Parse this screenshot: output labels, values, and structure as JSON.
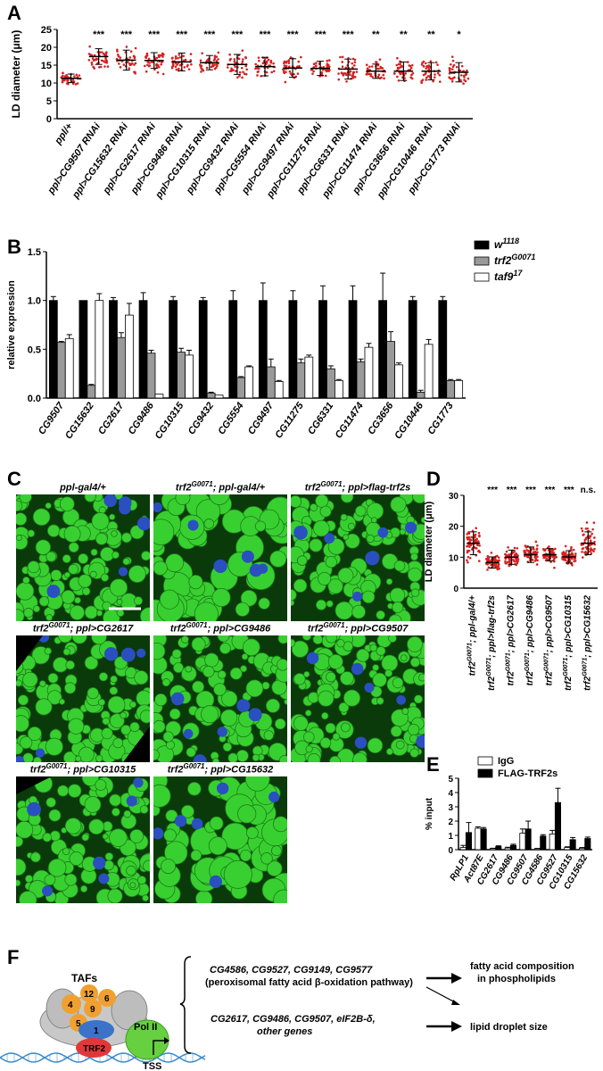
{
  "panels": {
    "A": "A",
    "B": "B",
    "C": "C",
    "D": "D",
    "E": "E",
    "F": "F"
  },
  "colors": {
    "red_points": "#d62020",
    "black": "#000000",
    "gray_bar": "#9a9a9a",
    "white_bar": "#ffffff",
    "droplet_green": "#38d030",
    "nucleus_blue": "#2a4fc0"
  },
  "chart_data": [
    {
      "id": "A",
      "type": "scatter",
      "ylabel": "LD diameter (μm)",
      "ylim": [
        0,
        25
      ],
      "yticks": [
        0,
        5,
        10,
        15,
        20,
        25
      ],
      "categories": [
        "ppl/+",
        "ppl>CG9507 RNAi",
        "ppl>CG15632 RNAi",
        "ppl>CG2617 RNAi",
        "ppl>CG9486 RNAi",
        "ppl>CG10315 RNAi",
        "ppl>CG9432 RNAi",
        "ppl>CG5554 RNAi",
        "ppl>CG9497 RNAi",
        "ppl>CG11275 RNAi",
        "ppl>CG6331 RNAi",
        "ppl>CG11474 RNAi",
        "ppl>CG3656 RNAi",
        "ppl>CG10446 RNAi",
        "ppl>CG1773 RNAi"
      ],
      "means": [
        11.3,
        17.4,
        16.4,
        16.3,
        15.9,
        15.7,
        15.2,
        14.6,
        14.2,
        14.1,
        13.9,
        13.3,
        13.3,
        13.3,
        13.0
      ],
      "sd": [
        1.2,
        2.2,
        2.8,
        2.2,
        2.5,
        2.0,
        2.8,
        2.6,
        2.6,
        2.0,
        2.8,
        2.0,
        2.6,
        2.4,
        2.7
      ],
      "significance": [
        "",
        "***",
        "***",
        "***",
        "***",
        "***",
        "***",
        "***",
        "***",
        "***",
        "***",
        "**",
        "**",
        "**",
        "*"
      ]
    },
    {
      "id": "B",
      "type": "bar",
      "ylabel": "relative expression",
      "ylim": [
        0,
        1.5
      ],
      "yticks": [
        "0.0",
        "0.5",
        "1.0",
        "1.5"
      ],
      "categories": [
        "CG9507",
        "CG15632",
        "CG2617",
        "CG9486",
        "CG10315",
        "CG9432",
        "CG5554",
        "CG9497",
        "CG11275",
        "CG6331",
        "CG11474",
        "CG3656",
        "CG10446",
        "CG1773"
      ],
      "series": [
        {
          "name": "w1118",
          "legend_base": "w",
          "legend_sup": "1118",
          "color": "#000000",
          "values": [
            1,
            1,
            1,
            1,
            1,
            1,
            1,
            1,
            1,
            1,
            1,
            1,
            1,
            1
          ],
          "err": [
            0.04,
            0,
            0.03,
            0.08,
            0.04,
            0.03,
            0.1,
            0.18,
            0.1,
            0.15,
            0.15,
            0.28,
            0.04,
            0.04
          ]
        },
        {
          "name": "trf2G0071",
          "legend_base": "trf2",
          "legend_sup": "G0071",
          "color": "#9a9a9a",
          "values": [
            0.57,
            0.13,
            0.62,
            0.46,
            0.47,
            0.05,
            0.21,
            0.32,
            0.36,
            0.3,
            0.37,
            0.58,
            0.06,
            0.18
          ],
          "err": [
            0.01,
            0.01,
            0.05,
            0.03,
            0.04,
            0.01,
            0.01,
            0.08,
            0.04,
            0.03,
            0.03,
            0.1,
            0.02,
            0.01
          ]
        },
        {
          "name": "taf917",
          "legend_base": "taf9",
          "legend_sup": "17",
          "color": "#ffffff",
          "values": [
            0.61,
            1.0,
            0.85,
            0.04,
            0.44,
            0.03,
            0.32,
            0.17,
            0.42,
            0.18,
            0.52,
            0.34,
            0.55,
            0.18
          ],
          "err": [
            0.04,
            0.07,
            0.12,
            0,
            0.05,
            0,
            0.01,
            0.01,
            0.02,
            0.01,
            0.04,
            0.02,
            0.05,
            0.01
          ]
        }
      ]
    },
    {
      "id": "D",
      "type": "scatter",
      "ylabel": "LD diameter (μm)",
      "ylim": [
        0,
        30
      ],
      "yticks": [
        0,
        10,
        20,
        30
      ],
      "categories": [
        "trf2G0071; ppl-gal4/+",
        "trf2G0071; ppl>flag-trf2s",
        "trf2G0071; ppl>CG2617",
        "trf2G0071; ppl>CG9486",
        "trf2G0071; ppl>CG9507",
        "trf2G0071; ppl>CG10315",
        "trf2G0071; ppl>CG15632"
      ],
      "category_parts": [
        [
          "trf2",
          "G0071",
          "; ppl-gal4/+"
        ],
        [
          "trf2",
          "G0071",
          "; ppl>flag-trf2s"
        ],
        [
          "trf2",
          "G0071",
          "; ppl>CG2617"
        ],
        [
          "trf2",
          "G0071",
          "; ppl>CG9486"
        ],
        [
          "trf2",
          "G0071",
          "; ppl>CG9507"
        ],
        [
          "trf2",
          "G0071",
          "; ppl>CG10315"
        ],
        [
          "trf2",
          "G0071",
          "; ppl>CG15632"
        ]
      ],
      "means": [
        14.5,
        8.3,
        10.0,
        10.8,
        10.8,
        10.1,
        14.5
      ],
      "sd": [
        3.7,
        1.8,
        2.3,
        2.5,
        2.0,
        2.0,
        3.7
      ],
      "significance": [
        "",
        "***",
        "***",
        "***",
        "***",
        "***",
        "n.s."
      ]
    },
    {
      "id": "E",
      "type": "bar",
      "ylabel": "% input",
      "ylim": [
        0,
        5
      ],
      "yticks": [
        0,
        1,
        2,
        3,
        4,
        5
      ],
      "categories": [
        "RpLP1",
        "Act87E",
        "CG2617",
        "CG9486",
        "CG9507",
        "CG4586",
        "CG9527",
        "CG10315",
        "CG15632"
      ],
      "series": [
        {
          "name": "IgG",
          "color": "#ffffff",
          "values": [
            0.15,
            1.5,
            0.08,
            0.12,
            1.15,
            0.07,
            1.1,
            0.15,
            0.1
          ],
          "err": [
            0.15,
            0.1,
            0.02,
            0.05,
            0.3,
            0.02,
            0.25,
            0.05,
            0.05
          ]
        },
        {
          "name": "FLAG-TRF2s",
          "color": "#000000",
          "values": [
            1.2,
            1.45,
            0.22,
            0.3,
            1.45,
            0.95,
            3.3,
            0.7,
            0.78
          ],
          "err": [
            0.7,
            0.1,
            0.05,
            0.08,
            0.55,
            0.1,
            1.0,
            0.15,
            0.1
          ]
        }
      ]
    }
  ],
  "panelC": {
    "images": [
      {
        "base": "ppl-gal4/+",
        "sup": "",
        "rest": ""
      },
      {
        "base": "trf2",
        "sup": "G0071",
        "rest": "; ppl-gal4/+"
      },
      {
        "base": "trf2",
        "sup": "G0071",
        "rest": "; ppl>flag-trf2s"
      },
      {
        "base": "trf2",
        "sup": "G0071",
        "rest": "; ppl>CG2617"
      },
      {
        "base": "trf2",
        "sup": "G0071",
        "rest": "; ppl>CG9486"
      },
      {
        "base": "trf2",
        "sup": "G0071",
        "rest": "; ppl>CG9507"
      },
      {
        "base": "trf2",
        "sup": "G0071",
        "rest": "; ppl>CG10315"
      },
      {
        "base": "trf2",
        "sup": "G0071",
        "rest": "; ppl>CG15632"
      }
    ]
  },
  "panelF": {
    "tafs_label": "TAFs",
    "taf_numbers": [
      "4",
      "12",
      "6",
      "9",
      "5",
      "1"
    ],
    "trf2_label": "TRF2",
    "pol_label": "Pol II",
    "tss_label": "TSS",
    "genes_line1": "CG4586, CG9527, CG9149, CG9577",
    "genes_line2a": "(peroxisomal fatty acid ",
    "genes_line2_beta": "β",
    "genes_line2b": "-oxidation pathway)",
    "genes_line3": "CG2617, CG9486, CG9507, eIF2B-δ,",
    "genes_line4": "other genes",
    "outcome1_line1": "fatty acid composition",
    "outcome1_line2": "in phospholipids",
    "outcome2": "lipid droplet size"
  }
}
